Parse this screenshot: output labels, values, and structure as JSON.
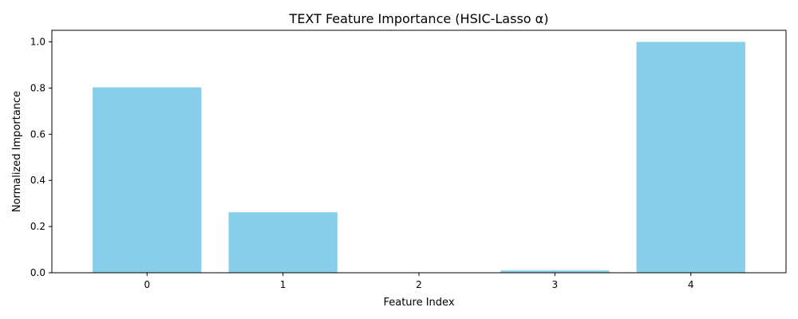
{
  "chart_data": {
    "type": "bar",
    "title": "TEXT Feature Importance (HSIC-Lasso α)",
    "xlabel": "Feature Index",
    "ylabel": "Normalized Importance",
    "categories": [
      "0",
      "1",
      "2",
      "3",
      "4"
    ],
    "values": [
      0.803,
      0.262,
      0.0,
      0.01,
      1.0
    ],
    "ylim": [
      0,
      1.05
    ],
    "yticks": [
      "0.0",
      "0.2",
      "0.4",
      "0.6",
      "0.8",
      "1.0"
    ],
    "bar_color": "#87CEEB",
    "grid": false,
    "legend": "none"
  }
}
